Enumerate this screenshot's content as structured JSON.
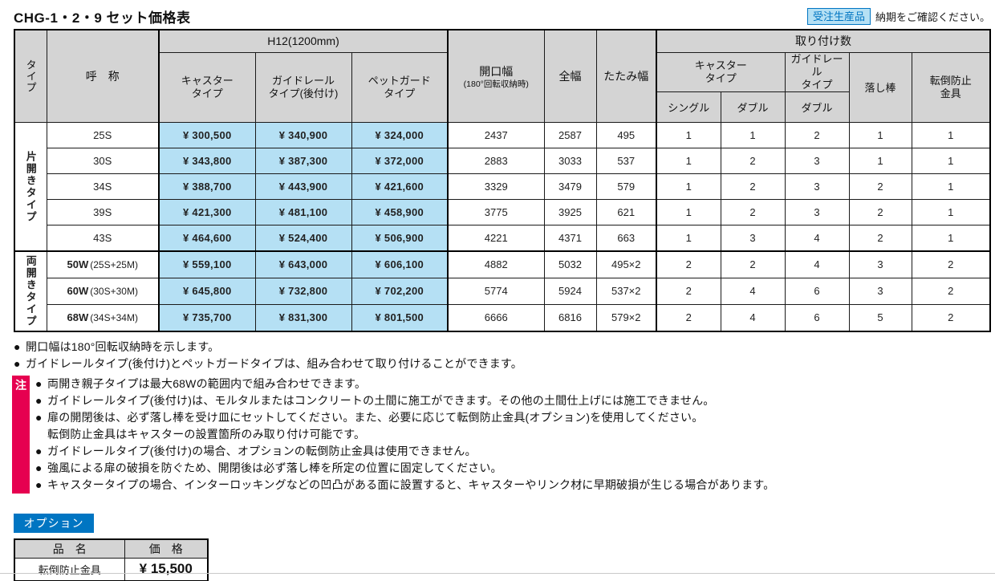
{
  "page": {
    "title": "CHG-1・2・9 セット価格表",
    "order_badge": "受注生産品",
    "order_note": "納期をご確認ください。"
  },
  "colors": {
    "accent_blue": "#0075c2",
    "light_blue": "#b5e0f4",
    "header_gray": "#d4d4d4",
    "caution_pink": "#e60050"
  },
  "table": {
    "header": {
      "type": "タイプ",
      "name": "呼　称",
      "h12_group": "H12(1200mm)",
      "price_cols": [
        "キャスター\nタイプ",
        "ガイドレール\nタイプ(後付け)",
        "ペットガード\nタイプ"
      ],
      "opening_main": "開口幅",
      "opening_sub": "(180°回転収納時)",
      "full_width": "全幅",
      "folded_width": "たたみ幅",
      "mount_group": "取り付け数",
      "mount_caster": "キャスター\nタイプ",
      "mount_guiderail": "ガイドレール\nタイプ",
      "mount_sub": [
        "シングル",
        "ダブル",
        "ダブル"
      ],
      "drop_bar": "落し棒",
      "tipover": "転倒防止\n金具"
    },
    "sections": [
      {
        "type_label": "片開きタイプ",
        "rows": [
          {
            "name": "25S",
            "suffix": "",
            "bold": false,
            "prices": [
              "¥ 300,500",
              "¥ 340,900",
              "¥ 324,000"
            ],
            "opening": "2437",
            "full": "2587",
            "folded": "495",
            "counts": [
              "1",
              "1",
              "2",
              "1",
              "1"
            ]
          },
          {
            "name": "30S",
            "suffix": "",
            "bold": false,
            "prices": [
              "¥ 343,800",
              "¥ 387,300",
              "¥ 372,000"
            ],
            "opening": "2883",
            "full": "3033",
            "folded": "537",
            "counts": [
              "1",
              "2",
              "3",
              "1",
              "1"
            ]
          },
          {
            "name": "34S",
            "suffix": "",
            "bold": false,
            "prices": [
              "¥ 388,700",
              "¥ 443,900",
              "¥ 421,600"
            ],
            "opening": "3329",
            "full": "3479",
            "folded": "579",
            "counts": [
              "1",
              "2",
              "3",
              "2",
              "1"
            ]
          },
          {
            "name": "39S",
            "suffix": "",
            "bold": false,
            "prices": [
              "¥ 421,300",
              "¥ 481,100",
              "¥ 458,900"
            ],
            "opening": "3775",
            "full": "3925",
            "folded": "621",
            "counts": [
              "1",
              "2",
              "3",
              "2",
              "1"
            ]
          },
          {
            "name": "43S",
            "suffix": "",
            "bold": false,
            "prices": [
              "¥ 464,600",
              "¥ 524,400",
              "¥ 506,900"
            ],
            "opening": "4221",
            "full": "4371",
            "folded": "663",
            "counts": [
              "1",
              "3",
              "4",
              "2",
              "1"
            ]
          }
        ]
      },
      {
        "type_label": "両開きタイプ",
        "rows": [
          {
            "name": "50W",
            "suffix": "(25S+25M)",
            "bold": true,
            "prices": [
              "¥ 559,100",
              "¥ 643,000",
              "¥ 606,100"
            ],
            "opening": "4882",
            "full": "5032",
            "folded": "495×2",
            "counts": [
              "2",
              "2",
              "4",
              "3",
              "2"
            ]
          },
          {
            "name": "60W",
            "suffix": "(30S+30M)",
            "bold": true,
            "prices": [
              "¥ 645,800",
              "¥ 732,800",
              "¥ 702,200"
            ],
            "opening": "5774",
            "full": "5924",
            "folded": "537×2",
            "counts": [
              "2",
              "4",
              "6",
              "3",
              "2"
            ]
          },
          {
            "name": "68W",
            "suffix": "(34S+34M)",
            "bold": true,
            "prices": [
              "¥ 735,700",
              "¥ 831,300",
              "¥ 801,500"
            ],
            "opening": "6666",
            "full": "6816",
            "folded": "579×2",
            "counts": [
              "2",
              "4",
              "6",
              "5",
              "2"
            ]
          }
        ]
      }
    ]
  },
  "notes": {
    "top": [
      {
        "bullet": "●",
        "text": "開口幅は180°回転収納時を示します。"
      },
      {
        "bullet": "●",
        "text": "ガイドレールタイプ(後付け)とペットガードタイプは、組み合わせて取り付けることができます。"
      }
    ],
    "caution_badge": "注",
    "caution": [
      {
        "bullet": "●",
        "text": "両開き親子タイプは最大68Wの範囲内で組み合わせできます。"
      },
      {
        "bullet": "●",
        "text": "ガイドレールタイプ(後付け)は、モルタルまたはコンクリートの土間に施工ができます。その他の土間仕上げには施工できません。"
      },
      {
        "bullet": "●",
        "text": "扉の開閉後は、必ず落し棒を受け皿にセットしてください。また、必要に応じて転倒防止金具(オプション)を使用してください。"
      },
      {
        "bullet": "",
        "text": "転倒防止金具はキャスターの設置箇所のみ取り付け可能です。"
      },
      {
        "bullet": "●",
        "text": "ガイドレールタイプ(後付け)の場合、オプションの転倒防止金具は使用できません。"
      },
      {
        "bullet": "●",
        "text": "強風による扉の破損を防ぐため、開閉後は必ず落し棒を所定の位置に固定してください。"
      },
      {
        "bullet": "●",
        "text": "キャスタータイプの場合、インターロッキングなどの凹凸がある面に設置すると、キャスターやリンク材に早期破損が生じる場合があります。"
      }
    ]
  },
  "option": {
    "badge": "オプション",
    "headers": [
      "品　名",
      "価　格"
    ],
    "rows": [
      {
        "name": "転倒防止金具",
        "price": "¥ 15,500"
      }
    ]
  }
}
